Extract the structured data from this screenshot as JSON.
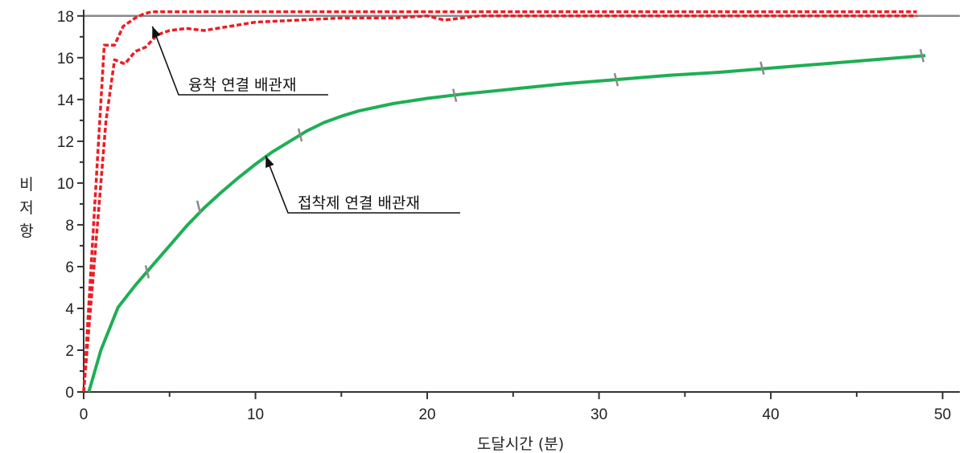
{
  "chart_data": {
    "type": "line",
    "xlabel": "도달시간 (분)",
    "ylabel": "비저항",
    "xlim": [
      0,
      51
    ],
    "ylim": [
      0,
      18.3
    ],
    "x_ticks": [
      0,
      10,
      20,
      30,
      40,
      50
    ],
    "y_ticks": [
      0,
      2,
      4,
      6,
      8,
      10,
      12,
      14,
      16,
      18
    ],
    "reference_line": {
      "y": 18,
      "color": "#888888"
    },
    "grid": false,
    "colors": {
      "fused": "#ec1c24",
      "adhesive": "#1fae55",
      "marker": "#8a8a8a"
    },
    "series": [
      {
        "key": "fused_upper",
        "style": "dashed",
        "color": "#ec1c24",
        "x": [
          0,
          1.2,
          1.8,
          2.3,
          3,
          3.5,
          4,
          5,
          10,
          20,
          30,
          40,
          48.5
        ],
        "y": [
          0,
          16.6,
          16.6,
          17.5,
          17.9,
          18.1,
          18.2,
          18.2,
          18.2,
          18.2,
          18.2,
          18.2,
          18.2
        ]
      },
      {
        "key": "fused_lower",
        "style": "dashed",
        "color": "#ec1c24",
        "x": [
          0,
          0.8,
          1.3,
          1.8,
          2.4,
          3,
          3.6,
          4.3,
          5,
          6,
          7,
          10,
          15,
          18,
          20,
          21,
          23,
          30,
          40,
          48.5
        ],
        "y": [
          0,
          8,
          13,
          15.9,
          15.7,
          16.3,
          16.5,
          17.1,
          17.3,
          17.4,
          17.3,
          17.7,
          17.9,
          17.9,
          18,
          17.8,
          18,
          18,
          18,
          18
        ]
      },
      {
        "key": "adhesive",
        "style": "solid",
        "color": "#1fae55",
        "x": [
          0.3,
          1,
          2,
          3,
          4,
          5,
          6,
          7,
          8,
          9,
          10,
          11,
          12,
          13,
          14,
          15,
          16,
          18,
          20,
          22,
          25,
          28,
          31,
          34,
          37,
          40,
          43,
          46,
          49
        ],
        "y": [
          0,
          2,
          4.05,
          5.1,
          6.05,
          7,
          7.95,
          8.8,
          9.55,
          10.25,
          10.9,
          11.5,
          12,
          12.5,
          12.9,
          13.2,
          13.45,
          13.8,
          14.05,
          14.25,
          14.5,
          14.75,
          14.95,
          15.15,
          15.3,
          15.5,
          15.7,
          15.9,
          16.1
        ]
      }
    ],
    "markers": [
      {
        "x": 3.7,
        "y": 5.75
      },
      {
        "x": 6.7,
        "y": 8.85
      },
      {
        "x": 12.6,
        "y": 12.3
      },
      {
        "x": 21.6,
        "y": 14.2
      },
      {
        "x": 31,
        "y": 14.95
      },
      {
        "x": 39.5,
        "y": 15.5
      },
      {
        "x": 48.8,
        "y": 16.1
      }
    ],
    "annotations": [
      {
        "key": "fused",
        "text": "융착 연결 배관재",
        "target": {
          "x": 4.0,
          "y": 17.5
        }
      },
      {
        "key": "adhesive",
        "text": "접착제 연결 배관재",
        "target": {
          "x": 10.6,
          "y": 11.3
        }
      }
    ]
  }
}
